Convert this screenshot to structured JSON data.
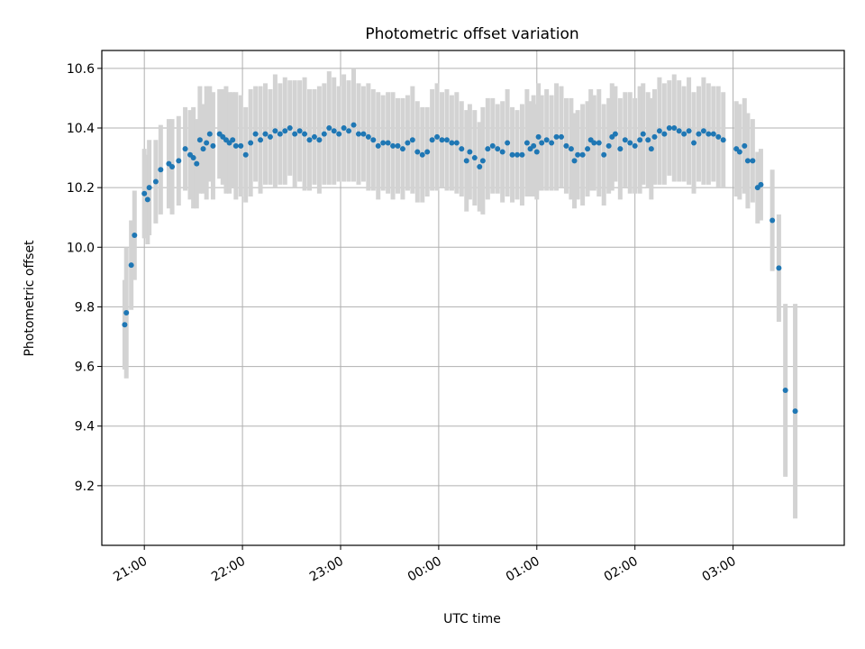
{
  "chart_data": {
    "type": "scatter",
    "title": "Photometric offset variation",
    "xlabel": "UTC time",
    "ylabel": "Photometric offset",
    "x_axis": "time",
    "xlim": [
      "20:34",
      "04:08"
    ],
    "ylim": [
      9.0,
      10.66
    ],
    "x_ticks": [
      "21:00",
      "22:00",
      "23:00",
      "00:00",
      "01:00",
      "02:00",
      "03:00"
    ],
    "y_ticks": [
      "9.2",
      "9.4",
      "9.6",
      "9.8",
      "10.0",
      "10.2",
      "10.4",
      "10.6"
    ],
    "grid": true,
    "colors": {
      "point": "#1f77b4",
      "errorbar": "#d3d3d3",
      "grid": "#b0b0b0"
    },
    "series": [
      {
        "values": [
          {
            "t": "20:48",
            "y": 9.74,
            "err": 0.15
          },
          {
            "t": "20:49",
            "y": 9.78,
            "err": 0.22
          },
          {
            "t": "20:52",
            "y": 9.94,
            "err": 0.15
          },
          {
            "t": "20:54",
            "y": 10.04,
            "err": 0.15
          },
          {
            "t": "21:00",
            "y": 10.18,
            "err": 0.15
          },
          {
            "t": "21:02",
            "y": 10.16,
            "err": 0.15
          },
          {
            "t": "21:03",
            "y": 10.2,
            "err": 0.16
          },
          {
            "t": "21:07",
            "y": 10.22,
            "err": 0.14
          },
          {
            "t": "21:10",
            "y": 10.26,
            "err": 0.15
          },
          {
            "t": "21:15",
            "y": 10.28,
            "err": 0.15
          },
          {
            "t": "21:17",
            "y": 10.27,
            "err": 0.16
          },
          {
            "t": "21:21",
            "y": 10.29,
            "err": 0.15
          },
          {
            "t": "21:25",
            "y": 10.33,
            "err": 0.14
          },
          {
            "t": "21:28",
            "y": 10.31,
            "err": 0.15
          },
          {
            "t": "21:30",
            "y": 10.3,
            "err": 0.17
          },
          {
            "t": "21:32",
            "y": 10.28,
            "err": 0.15
          },
          {
            "t": "21:34",
            "y": 10.36,
            "err": 0.18
          },
          {
            "t": "21:36",
            "y": 10.33,
            "err": 0.15
          },
          {
            "t": "21:38",
            "y": 10.35,
            "err": 0.19
          },
          {
            "t": "21:40",
            "y": 10.38,
            "err": 0.16
          },
          {
            "t": "21:42",
            "y": 10.34,
            "err": 0.18
          },
          {
            "t": "21:46",
            "y": 10.38,
            "err": 0.15
          },
          {
            "t": "21:48",
            "y": 10.37,
            "err": 0.16
          },
          {
            "t": "21:50",
            "y": 10.36,
            "err": 0.18
          },
          {
            "t": "21:52",
            "y": 10.35,
            "err": 0.17
          },
          {
            "t": "21:54",
            "y": 10.36,
            "err": 0.16
          },
          {
            "t": "21:56",
            "y": 10.34,
            "err": 0.18
          },
          {
            "t": "21:59",
            "y": 10.34,
            "err": 0.17
          },
          {
            "t": "22:02",
            "y": 10.31,
            "err": 0.16
          },
          {
            "t": "22:05",
            "y": 10.35,
            "err": 0.18
          },
          {
            "t": "22:08",
            "y": 10.38,
            "err": 0.16
          },
          {
            "t": "22:11",
            "y": 10.36,
            "err": 0.18
          },
          {
            "t": "22:14",
            "y": 10.38,
            "err": 0.17
          },
          {
            "t": "22:17",
            "y": 10.37,
            "err": 0.16
          },
          {
            "t": "22:20",
            "y": 10.39,
            "err": 0.19
          },
          {
            "t": "22:23",
            "y": 10.38,
            "err": 0.17
          },
          {
            "t": "22:26",
            "y": 10.39,
            "err": 0.18
          },
          {
            "t": "22:29",
            "y": 10.4,
            "err": 0.16
          },
          {
            "t": "22:32",
            "y": 10.38,
            "err": 0.18
          },
          {
            "t": "22:35",
            "y": 10.39,
            "err": 0.17
          },
          {
            "t": "22:38",
            "y": 10.38,
            "err": 0.19
          },
          {
            "t": "22:41",
            "y": 10.36,
            "err": 0.17
          },
          {
            "t": "22:44",
            "y": 10.37,
            "err": 0.16
          },
          {
            "t": "22:47",
            "y": 10.36,
            "err": 0.18
          },
          {
            "t": "22:50",
            "y": 10.38,
            "err": 0.17
          },
          {
            "t": "22:53",
            "y": 10.4,
            "err": 0.19
          },
          {
            "t": "22:56",
            "y": 10.39,
            "err": 0.18
          },
          {
            "t": "22:59",
            "y": 10.38,
            "err": 0.16
          },
          {
            "t": "23:02",
            "y": 10.4,
            "err": 0.18
          },
          {
            "t": "23:05",
            "y": 10.39,
            "err": 0.17
          },
          {
            "t": "23:08",
            "y": 10.41,
            "err": 0.19
          },
          {
            "t": "23:11",
            "y": 10.38,
            "err": 0.17
          },
          {
            "t": "23:14",
            "y": 10.38,
            "err": 0.16
          },
          {
            "t": "23:17",
            "y": 10.37,
            "err": 0.18
          },
          {
            "t": "23:20",
            "y": 10.36,
            "err": 0.17
          },
          {
            "t": "23:23",
            "y": 10.34,
            "err": 0.18
          },
          {
            "t": "23:26",
            "y": 10.35,
            "err": 0.16
          },
          {
            "t": "23:29",
            "y": 10.35,
            "err": 0.17
          },
          {
            "t": "23:32",
            "y": 10.34,
            "err": 0.18
          },
          {
            "t": "23:35",
            "y": 10.34,
            "err": 0.16
          },
          {
            "t": "23:38",
            "y": 10.33,
            "err": 0.17
          },
          {
            "t": "23:41",
            "y": 10.35,
            "err": 0.16
          },
          {
            "t": "23:44",
            "y": 10.36,
            "err": 0.18
          },
          {
            "t": "23:47",
            "y": 10.32,
            "err": 0.17
          },
          {
            "t": "23:50",
            "y": 10.31,
            "err": 0.16
          },
          {
            "t": "23:53",
            "y": 10.32,
            "err": 0.15
          },
          {
            "t": "23:56",
            "y": 10.36,
            "err": 0.17
          },
          {
            "t": "23:59",
            "y": 10.37,
            "err": 0.18
          },
          {
            "t": "00:02",
            "y": 10.36,
            "err": 0.16
          },
          {
            "t": "00:05",
            "y": 10.36,
            "err": 0.17
          },
          {
            "t": "00:08",
            "y": 10.35,
            "err": 0.16
          },
          {
            "t": "00:11",
            "y": 10.35,
            "err": 0.17
          },
          {
            "t": "00:14",
            "y": 10.33,
            "err": 0.16
          },
          {
            "t": "00:17",
            "y": 10.29,
            "err": 0.17
          },
          {
            "t": "00:19",
            "y": 10.32,
            "err": 0.16
          },
          {
            "t": "00:22",
            "y": 10.3,
            "err": 0.16
          },
          {
            "t": "00:25",
            "y": 10.27,
            "err": 0.15
          },
          {
            "t": "00:27",
            "y": 10.29,
            "err": 0.18
          },
          {
            "t": "00:30",
            "y": 10.33,
            "err": 0.17
          },
          {
            "t": "00:33",
            "y": 10.34,
            "err": 0.16
          },
          {
            "t": "00:36",
            "y": 10.33,
            "err": 0.15
          },
          {
            "t": "00:39",
            "y": 10.32,
            "err": 0.17
          },
          {
            "t": "00:42",
            "y": 10.35,
            "err": 0.18
          },
          {
            "t": "00:45",
            "y": 10.31,
            "err": 0.16
          },
          {
            "t": "00:48",
            "y": 10.31,
            "err": 0.15
          },
          {
            "t": "00:51",
            "y": 10.31,
            "err": 0.17
          },
          {
            "t": "00:54",
            "y": 10.35,
            "err": 0.18
          },
          {
            "t": "00:56",
            "y": 10.33,
            "err": 0.16
          },
          {
            "t": "00:58",
            "y": 10.34,
            "err": 0.17
          },
          {
            "t": "01:00",
            "y": 10.32,
            "err": 0.16
          },
          {
            "t": "01:01",
            "y": 10.37,
            "err": 0.18
          },
          {
            "t": "01:03",
            "y": 10.35,
            "err": 0.16
          },
          {
            "t": "01:06",
            "y": 10.36,
            "err": 0.17
          },
          {
            "t": "01:09",
            "y": 10.35,
            "err": 0.16
          },
          {
            "t": "01:12",
            "y": 10.37,
            "err": 0.18
          },
          {
            "t": "01:15",
            "y": 10.37,
            "err": 0.17
          },
          {
            "t": "01:18",
            "y": 10.34,
            "err": 0.16
          },
          {
            "t": "01:21",
            "y": 10.33,
            "err": 0.17
          },
          {
            "t": "01:23",
            "y": 10.29,
            "err": 0.16
          },
          {
            "t": "01:25",
            "y": 10.31,
            "err": 0.15
          },
          {
            "t": "01:28",
            "y": 10.31,
            "err": 0.17
          },
          {
            "t": "01:31",
            "y": 10.33,
            "err": 0.16
          },
          {
            "t": "01:33",
            "y": 10.36,
            "err": 0.17
          },
          {
            "t": "01:35",
            "y": 10.35,
            "err": 0.16
          },
          {
            "t": "01:38",
            "y": 10.35,
            "err": 0.18
          },
          {
            "t": "01:41",
            "y": 10.31,
            "err": 0.17
          },
          {
            "t": "01:44",
            "y": 10.34,
            "err": 0.16
          },
          {
            "t": "01:46",
            "y": 10.37,
            "err": 0.18
          },
          {
            "t": "01:48",
            "y": 10.38,
            "err": 0.16
          },
          {
            "t": "01:51",
            "y": 10.33,
            "err": 0.17
          },
          {
            "t": "01:54",
            "y": 10.36,
            "err": 0.16
          },
          {
            "t": "01:57",
            "y": 10.35,
            "err": 0.17
          },
          {
            "t": "02:00",
            "y": 10.34,
            "err": 0.16
          },
          {
            "t": "02:03",
            "y": 10.36,
            "err": 0.18
          },
          {
            "t": "02:05",
            "y": 10.38,
            "err": 0.17
          },
          {
            "t": "02:08",
            "y": 10.36,
            "err": 0.16
          },
          {
            "t": "02:10",
            "y": 10.33,
            "err": 0.17
          },
          {
            "t": "02:12",
            "y": 10.37,
            "err": 0.16
          },
          {
            "t": "02:15",
            "y": 10.39,
            "err": 0.18
          },
          {
            "t": "02:18",
            "y": 10.38,
            "err": 0.17
          },
          {
            "t": "02:21",
            "y": 10.4,
            "err": 0.16
          },
          {
            "t": "02:24",
            "y": 10.4,
            "err": 0.18
          },
          {
            "t": "02:27",
            "y": 10.39,
            "err": 0.17
          },
          {
            "t": "02:30",
            "y": 10.38,
            "err": 0.16
          },
          {
            "t": "02:33",
            "y": 10.39,
            "err": 0.18
          },
          {
            "t": "02:36",
            "y": 10.35,
            "err": 0.17
          },
          {
            "t": "02:39",
            "y": 10.38,
            "err": 0.16
          },
          {
            "t": "02:42",
            "y": 10.39,
            "err": 0.18
          },
          {
            "t": "02:45",
            "y": 10.38,
            "err": 0.17
          },
          {
            "t": "02:48",
            "y": 10.38,
            "err": 0.16
          },
          {
            "t": "02:51",
            "y": 10.37,
            "err": 0.17
          },
          {
            "t": "02:54",
            "y": 10.36,
            "err": 0.16
          },
          {
            "t": "03:02",
            "y": 10.33,
            "err": 0.16
          },
          {
            "t": "03:04",
            "y": 10.32,
            "err": 0.16
          },
          {
            "t": "03:07",
            "y": 10.34,
            "err": 0.16
          },
          {
            "t": "03:09",
            "y": 10.29,
            "err": 0.16
          },
          {
            "t": "03:12",
            "y": 10.29,
            "err": 0.14
          },
          {
            "t": "03:15",
            "y": 10.2,
            "err": 0.12
          },
          {
            "t": "03:17",
            "y": 10.21,
            "err": 0.12
          },
          {
            "t": "03:24",
            "y": 10.09,
            "err": 0.17
          },
          {
            "t": "03:28",
            "y": 9.93,
            "err": 0.18
          },
          {
            "t": "03:32",
            "y": 9.52,
            "err": 0.29
          },
          {
            "t": "03:38",
            "y": 9.45,
            "err": 0.36
          }
        ]
      }
    ]
  }
}
